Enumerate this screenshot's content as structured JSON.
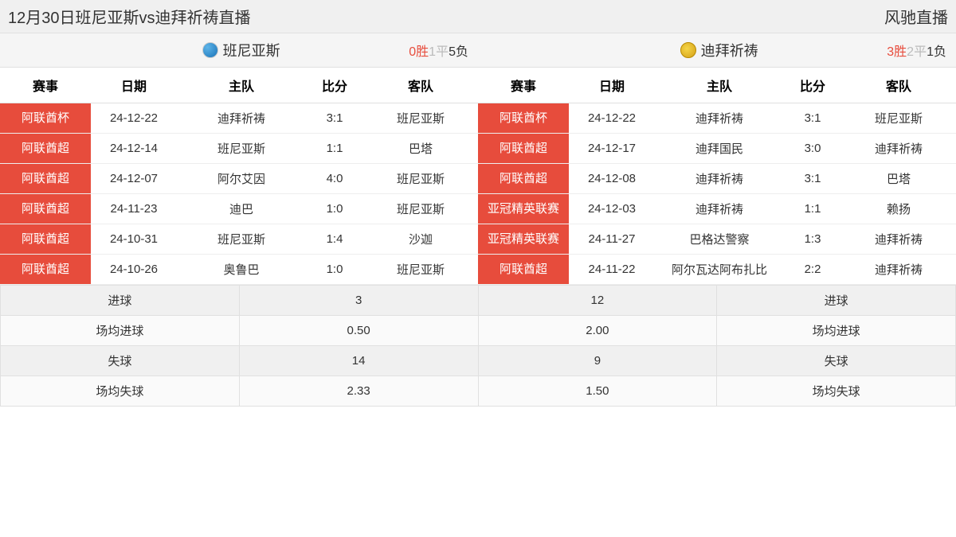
{
  "header": {
    "title": "12月30日班尼亚斯vs迪拜祈祷直播",
    "brand": "风驰直播"
  },
  "colors": {
    "competition_bg": "#e74c3c",
    "competition_fg": "#ffffff",
    "win_color": "#e74c3c",
    "draw_color": "#bbbbbb",
    "loss_color": "#333333",
    "header_bg": "#f0f0f0",
    "border": "#e0e0e0"
  },
  "columns": {
    "comp": "赛事",
    "date": "日期",
    "home": "主队",
    "score": "比分",
    "away": "客队"
  },
  "teams": {
    "left": {
      "name": "班尼亚斯",
      "record": {
        "win": 0,
        "draw": 1,
        "loss": 5
      },
      "matches": [
        {
          "comp": "阿联酋杯",
          "date": "24-12-22",
          "home": "迪拜祈祷",
          "score": "3:1",
          "away": "班尼亚斯"
        },
        {
          "comp": "阿联酋超",
          "date": "24-12-14",
          "home": "班尼亚斯",
          "score": "1:1",
          "away": "巴塔"
        },
        {
          "comp": "阿联酋超",
          "date": "24-12-07",
          "home": "阿尔艾因",
          "score": "4:0",
          "away": "班尼亚斯"
        },
        {
          "comp": "阿联酋超",
          "date": "24-11-23",
          "home": "迪巴",
          "score": "1:0",
          "away": "班尼亚斯"
        },
        {
          "comp": "阿联酋超",
          "date": "24-10-31",
          "home": "班尼亚斯",
          "score": "1:4",
          "away": "沙迦"
        },
        {
          "comp": "阿联酋超",
          "date": "24-10-26",
          "home": "奥鲁巴",
          "score": "1:0",
          "away": "班尼亚斯"
        }
      ]
    },
    "right": {
      "name": "迪拜祈祷",
      "record": {
        "win": 3,
        "draw": 2,
        "loss": 1
      },
      "matches": [
        {
          "comp": "阿联酋杯",
          "date": "24-12-22",
          "home": "迪拜祈祷",
          "score": "3:1",
          "away": "班尼亚斯"
        },
        {
          "comp": "阿联酋超",
          "date": "24-12-17",
          "home": "迪拜国民",
          "score": "3:0",
          "away": "迪拜祈祷"
        },
        {
          "comp": "阿联酋超",
          "date": "24-12-08",
          "home": "迪拜祈祷",
          "score": "3:1",
          "away": "巴塔"
        },
        {
          "comp": "亚冠精英联赛",
          "date": "24-12-03",
          "home": "迪拜祈祷",
          "score": "1:1",
          "away": "赖扬"
        },
        {
          "comp": "亚冠精英联赛",
          "date": "24-11-27",
          "home": "巴格达警察",
          "score": "1:3",
          "away": "迪拜祈祷"
        },
        {
          "comp": "阿联酋超",
          "date": "24-11-22",
          "home": "阿尔瓦达阿布扎比",
          "score": "2:2",
          "away": "迪拜祈祷"
        }
      ]
    }
  },
  "stats": {
    "labels": {
      "goals": "进球",
      "avg_goals": "场均进球",
      "conceded": "失球",
      "avg_conceded": "场均失球"
    },
    "left": {
      "goals": "3",
      "avg_goals": "0.50",
      "conceded": "14",
      "avg_conceded": "2.33"
    },
    "right": {
      "goals": "12",
      "avg_goals": "2.00",
      "conceded": "9",
      "avg_conceded": "1.50"
    }
  },
  "record_labels": {
    "win": "胜",
    "draw": "平",
    "loss": "负"
  }
}
